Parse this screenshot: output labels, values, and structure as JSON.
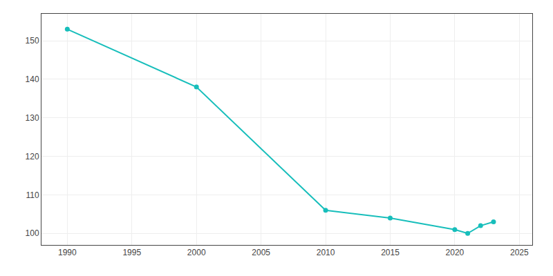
{
  "chart_data": {
    "type": "line",
    "x": [
      1990,
      2000,
      2010,
      2015,
      2020,
      2021,
      2022,
      2023
    ],
    "values": [
      153,
      138,
      106,
      104,
      101,
      100,
      102,
      103
    ],
    "color": "#17bebb",
    "marker": "circle",
    "xlim": [
      1988,
      2026
    ],
    "ylim": [
      97,
      157
    ],
    "xticks": [
      1990,
      1995,
      2000,
      2005,
      2010,
      2015,
      2020,
      2025
    ],
    "yticks": [
      100,
      110,
      120,
      130,
      140,
      150
    ],
    "grid": true
  }
}
